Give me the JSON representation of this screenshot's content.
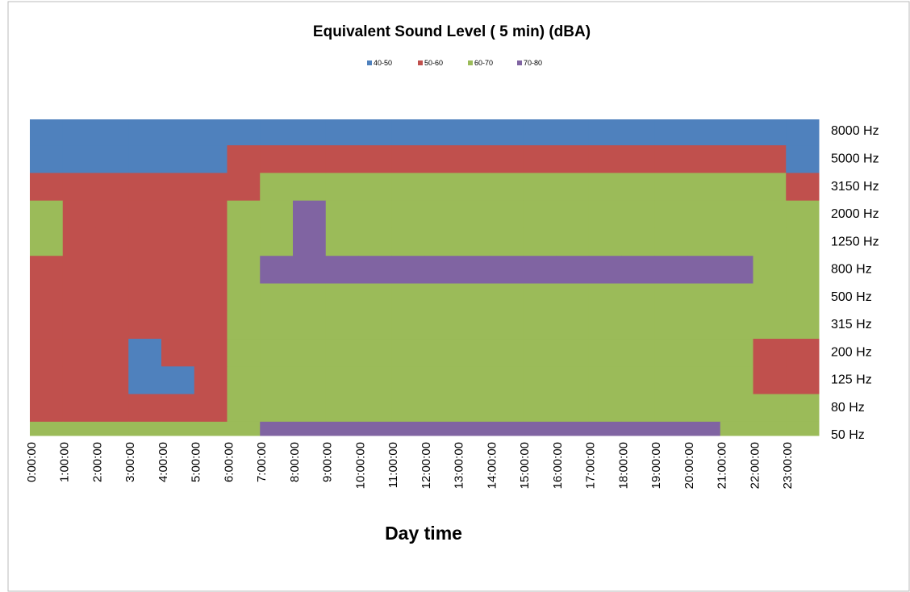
{
  "chart_data": {
    "type": "contour",
    "title": "Equivalent Sound Level ( 5 min) (dBA)",
    "x_label": "Day time",
    "categories": [
      "0:00:00",
      "1:00:00",
      "2:00:00",
      "3:00:00",
      "4:00:00",
      "5:00:00",
      "6:00:00",
      "7:00:00",
      "8:00:00",
      "9:00:00",
      "10:00:00",
      "11:00:00",
      "12:00:00",
      "13:00:00",
      "14:00:00",
      "15:00:00",
      "16:00:00",
      "17:00:00",
      "18:00:00",
      "19:00:00",
      "20:00:00",
      "21:00:00",
      "22:00:00",
      "23:00:00"
    ],
    "y_categories": [
      "8000 Hz",
      "5000 Hz",
      "3150 Hz",
      "2000 Hz",
      "1250 Hz",
      "800 Hz",
      "500 Hz",
      "315 Hz",
      "200 Hz",
      "125 Hz",
      "80 Hz",
      "50 Hz"
    ],
    "series": [
      {
        "name": "40-50",
        "color": "#4f81bd",
        "range": [
          40,
          50
        ]
      },
      {
        "name": "50-60",
        "color": "#c0504d",
        "range": [
          50,
          60
        ]
      },
      {
        "name": "60-70",
        "color": "#9bbb59",
        "range": [
          60,
          70
        ]
      },
      {
        "name": "70-80",
        "color": "#8064a2",
        "range": [
          70,
          80
        ]
      }
    ],
    "values": [
      [
        44,
        44,
        44,
        44,
        44,
        44,
        47,
        47,
        47,
        47,
        47,
        47,
        47,
        47,
        47,
        47,
        47,
        47,
        47,
        47,
        47,
        46,
        46,
        46
      ],
      [
        48,
        48,
        48,
        48,
        48,
        48,
        52,
        55,
        55,
        55,
        55,
        55,
        55,
        55,
        55,
        55,
        55,
        55,
        55,
        55,
        55,
        51,
        50,
        49
      ],
      [
        55,
        55,
        55,
        55,
        55,
        55,
        58,
        62,
        62,
        62,
        62,
        62,
        62,
        62,
        62,
        62,
        62,
        62,
        62,
        62,
        62,
        61,
        60,
        58
      ],
      [
        61,
        57,
        57,
        57,
        57,
        57,
        62,
        66,
        71,
        66,
        66,
        66,
        66,
        66,
        66,
        66,
        66,
        66,
        66,
        66,
        66,
        64,
        63,
        62
      ],
      [
        62,
        57,
        57,
        57,
        57,
        57,
        63,
        68,
        72,
        68,
        68,
        68,
        68,
        68,
        68,
        68,
        68,
        68,
        68,
        68,
        68,
        68,
        65,
        65
      ],
      [
        59,
        59,
        59,
        59,
        59,
        59,
        64,
        71,
        71,
        71,
        71,
        71,
        71,
        71,
        71,
        71,
        71,
        71,
        71,
        71,
        71,
        71,
        66,
        66
      ],
      [
        55,
        55,
        55,
        55,
        55,
        55,
        62,
        66,
        66,
        66,
        66,
        66,
        66,
        66,
        66,
        66,
        66,
        66,
        66,
        66,
        66,
        66,
        66,
        66
      ],
      [
        55,
        55,
        55,
        55,
        55,
        55,
        65,
        65,
        65,
        65,
        65,
        65,
        65,
        65,
        65,
        65,
        65,
        65,
        65,
        65,
        65,
        65,
        65,
        65
      ],
      [
        55,
        55,
        55,
        49,
        55,
        55,
        64,
        64,
        64,
        64,
        64,
        64,
        64,
        64,
        64,
        64,
        64,
        64,
        64,
        64,
        64,
        64,
        58,
        58
      ],
      [
        54,
        54,
        54,
        49,
        49,
        54,
        64,
        64,
        64,
        64,
        64,
        64,
        64,
        64,
        64,
        64,
        64,
        64,
        64,
        64,
        64,
        64,
        58,
        58
      ],
      [
        57,
        57,
        57,
        57,
        57,
        57,
        64,
        64,
        64,
        64,
        64,
        64,
        64,
        64,
        64,
        64,
        64,
        64,
        64,
        64,
        64,
        64,
        64,
        64
      ],
      [
        60,
        60,
        60,
        60,
        60,
        60,
        64,
        71,
        71,
        71,
        71,
        71,
        71,
        71,
        71,
        71,
        71,
        71,
        71,
        71,
        71,
        63,
        63,
        63
      ]
    ]
  }
}
